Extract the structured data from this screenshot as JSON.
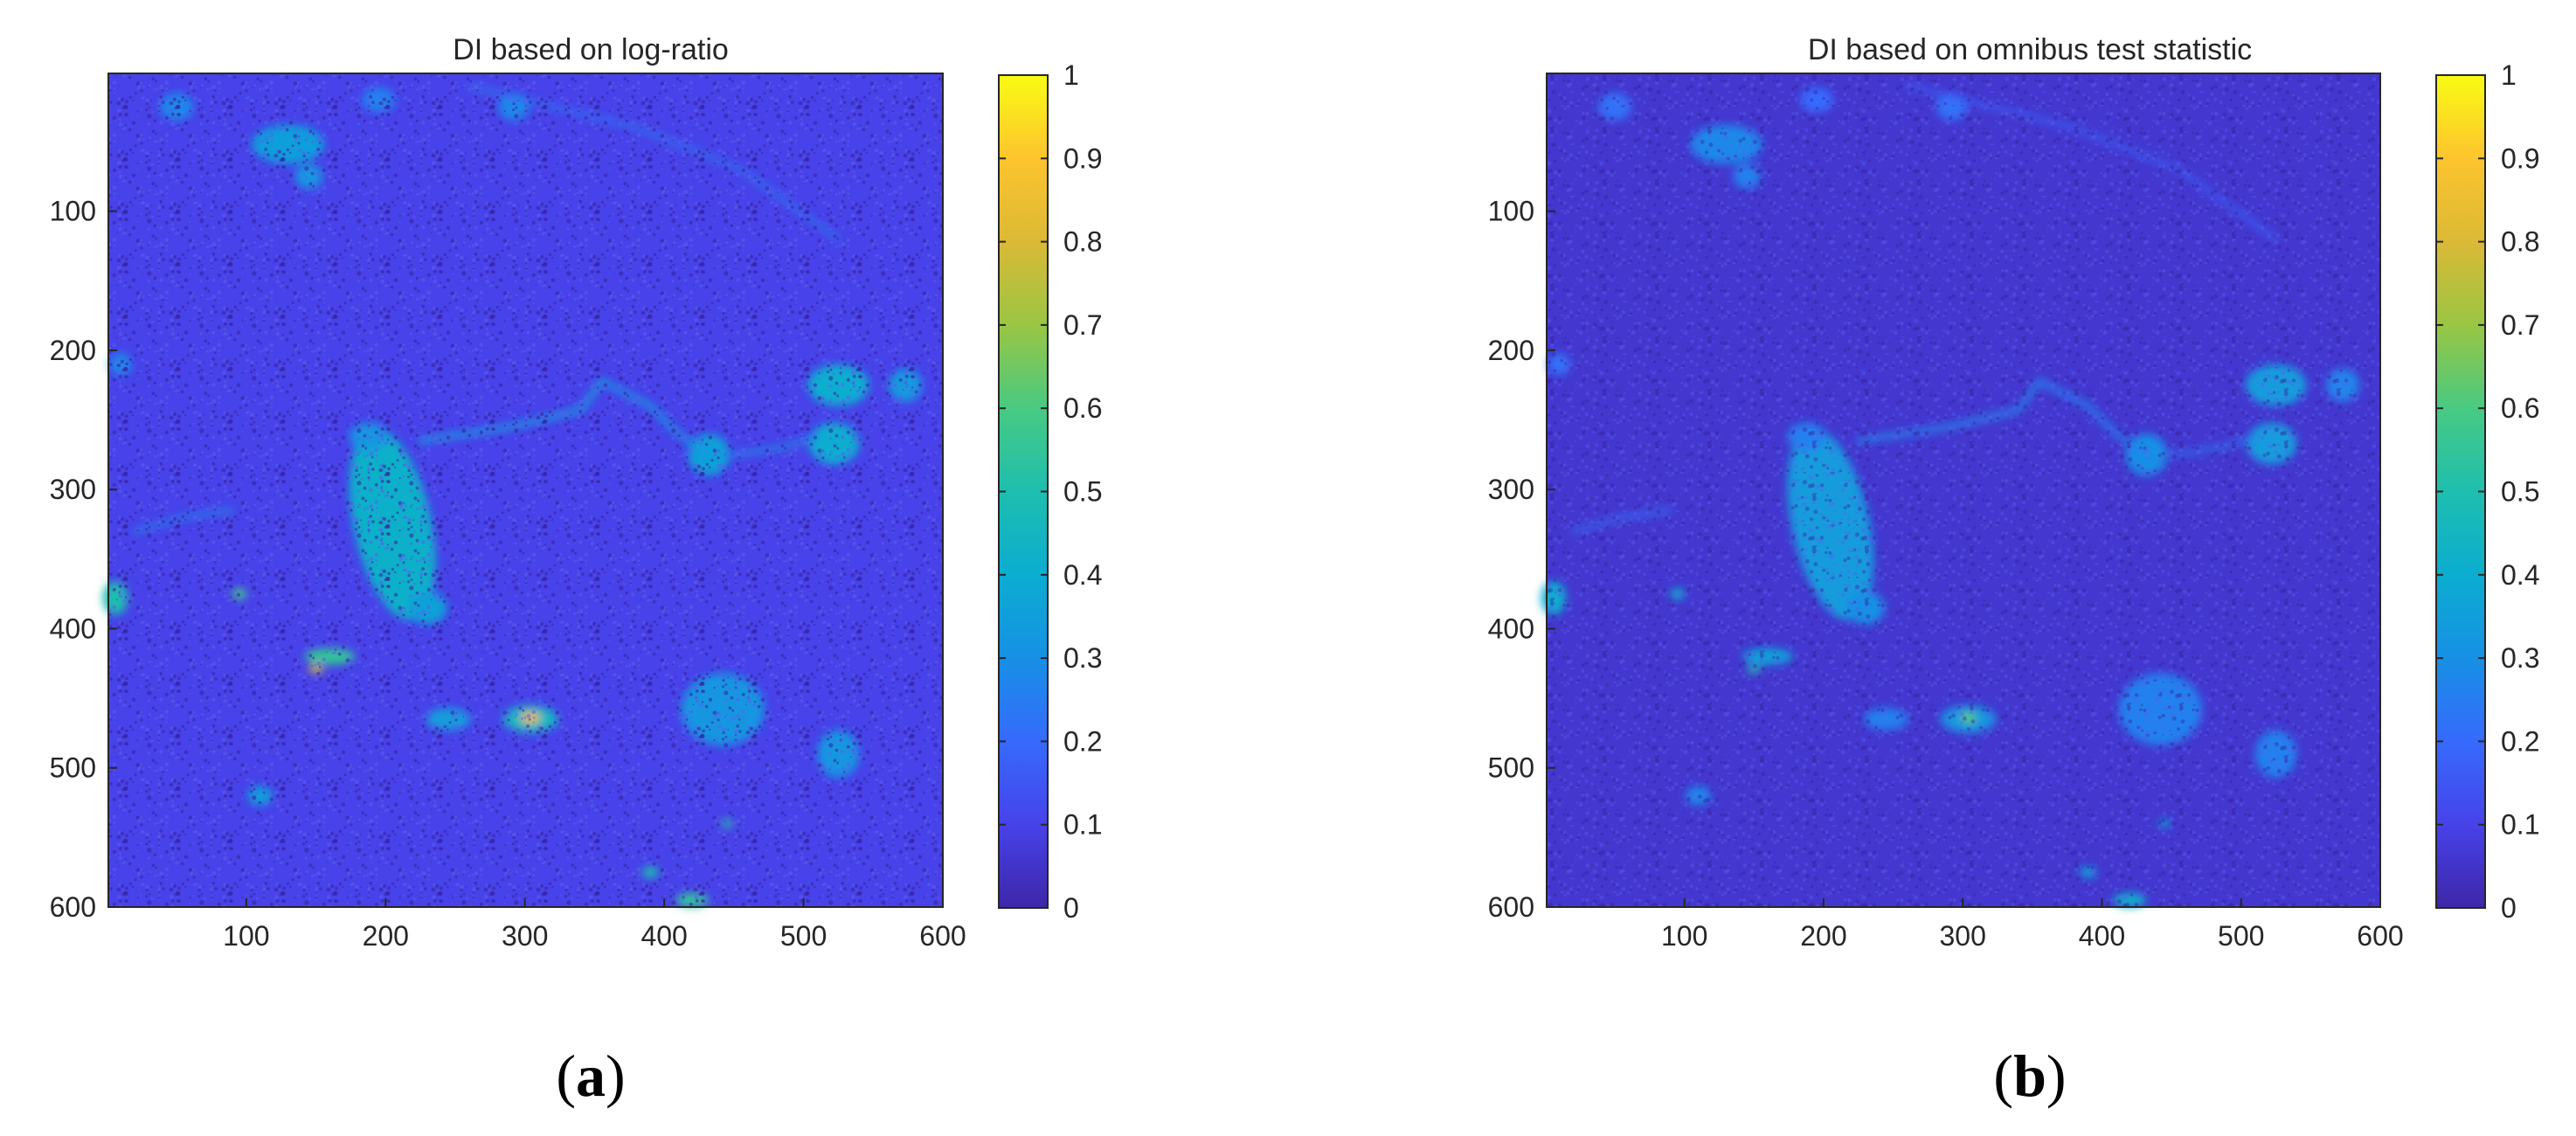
{
  "chart_data": [
    {
      "type": "heatmap",
      "title": "DI based on log-ratio",
      "caption_letter": "a",
      "xlabel": "",
      "ylabel": "",
      "xlim": [
        1,
        600
      ],
      "ylim": [
        600,
        1
      ],
      "x_ticks": [
        100,
        200,
        300,
        400,
        500,
        600
      ],
      "y_ticks": [
        100,
        200,
        300,
        400,
        500,
        600
      ],
      "colorbar_ticks": [
        0,
        0.1,
        0.2,
        0.3,
        0.4,
        0.5,
        0.6,
        0.7,
        0.8,
        0.9,
        1
      ],
      "colorbar_range": [
        0,
        1
      ],
      "colormap": "parula",
      "background_level": 0.1,
      "features": [
        {
          "shape": "ellipse",
          "cx": 205,
          "cy": 325,
          "rx": 28,
          "ry": 70,
          "rot": -12,
          "v": 0.42
        },
        {
          "shape": "ellipse",
          "cx": 188,
          "cy": 262,
          "rx": 14,
          "ry": 10,
          "rot": 0,
          "v": 0.32
        },
        {
          "shape": "ellipse",
          "cx": 230,
          "cy": 385,
          "rx": 14,
          "ry": 12,
          "rot": 0,
          "v": 0.36
        },
        {
          "shape": "ellipse",
          "cx": 130,
          "cy": 52,
          "rx": 26,
          "ry": 14,
          "rot": 0,
          "v": 0.35
        },
        {
          "shape": "ellipse",
          "cx": 145,
          "cy": 75,
          "rx": 10,
          "ry": 9,
          "rot": 0,
          "v": 0.32
        },
        {
          "shape": "ellipse",
          "cx": 50,
          "cy": 25,
          "rx": 12,
          "ry": 10,
          "rot": 0,
          "v": 0.28
        },
        {
          "shape": "ellipse",
          "cx": 195,
          "cy": 20,
          "rx": 12,
          "ry": 9,
          "rot": 0,
          "v": 0.26
        },
        {
          "shape": "ellipse",
          "cx": 292,
          "cy": 25,
          "rx": 11,
          "ry": 10,
          "rot": 0,
          "v": 0.28
        },
        {
          "shape": "ellipse",
          "cx": 525,
          "cy": 225,
          "rx": 22,
          "ry": 15,
          "rot": 0,
          "v": 0.4
        },
        {
          "shape": "ellipse",
          "cx": 573,
          "cy": 225,
          "rx": 12,
          "ry": 12,
          "rot": 0,
          "v": 0.33
        },
        {
          "shape": "ellipse",
          "cx": 522,
          "cy": 267,
          "rx": 18,
          "ry": 15,
          "rot": 0,
          "v": 0.4
        },
        {
          "shape": "ellipse",
          "cx": 432,
          "cy": 275,
          "rx": 15,
          "ry": 15,
          "rot": 0,
          "v": 0.36
        },
        {
          "shape": "ellipse",
          "cx": 525,
          "cy": 490,
          "rx": 15,
          "ry": 17,
          "rot": 0,
          "v": 0.32
        },
        {
          "shape": "ellipse",
          "cx": 442,
          "cy": 458,
          "rx": 30,
          "ry": 26,
          "rot": 0,
          "v": 0.32
        },
        {
          "shape": "ellipse",
          "cx": 304,
          "cy": 465,
          "rx": 20,
          "ry": 10,
          "rot": 0,
          "v": 0.44
        },
        {
          "shape": "ellipse",
          "cx": 304,
          "cy": 464,
          "rx": 7,
          "ry": 4,
          "rot": 0,
          "v": 0.82
        },
        {
          "shape": "ellipse",
          "cx": 160,
          "cy": 420,
          "rx": 18,
          "ry": 6,
          "rot": 0,
          "v": 0.55
        },
        {
          "shape": "ellipse",
          "cx": 150,
          "cy": 429,
          "rx": 5,
          "ry": 3,
          "rot": 0,
          "v": 0.78
        },
        {
          "shape": "ellipse",
          "cx": 95,
          "cy": 375,
          "rx": 5,
          "ry": 4,
          "rot": 0,
          "v": 0.58
        },
        {
          "shape": "ellipse",
          "cx": 110,
          "cy": 520,
          "rx": 9,
          "ry": 7,
          "rot": 0,
          "v": 0.35
        },
        {
          "shape": "ellipse",
          "cx": 245,
          "cy": 465,
          "rx": 16,
          "ry": 8,
          "rot": 0,
          "v": 0.34
        },
        {
          "shape": "ellipse",
          "cx": 6,
          "cy": 378,
          "rx": 9,
          "ry": 12,
          "rot": 0,
          "v": 0.5
        },
        {
          "shape": "ellipse",
          "cx": 420,
          "cy": 595,
          "rx": 12,
          "ry": 5,
          "rot": 0,
          "v": 0.55
        },
        {
          "shape": "ellipse",
          "cx": 390,
          "cy": 575,
          "rx": 6,
          "ry": 4,
          "rot": 0,
          "v": 0.5
        },
        {
          "shape": "ellipse",
          "cx": 445,
          "cy": 540,
          "rx": 4,
          "ry": 3,
          "rot": 0,
          "v": 0.52
        },
        {
          "shape": "ellipse",
          "cx": 10,
          "cy": 210,
          "rx": 8,
          "ry": 8,
          "rot": 0,
          "v": 0.28
        },
        {
          "shape": "line",
          "pts": [
            [
              225,
              265
            ],
            [
              290,
              255
            ],
            [
              340,
              243
            ],
            [
              355,
              222
            ]
          ],
          "w": 4,
          "v": 0.34
        },
        {
          "shape": "line",
          "pts": [
            [
              355,
              222
            ],
            [
              390,
              240
            ],
            [
              410,
              260
            ],
            [
              432,
              275
            ]
          ],
          "w": 4,
          "v": 0.32
        },
        {
          "shape": "line",
          "pts": [
            [
              450,
              275
            ],
            [
              485,
              270
            ],
            [
              510,
              262
            ]
          ],
          "w": 3,
          "v": 0.3
        },
        {
          "shape": "line",
          "pts": [
            [
              260,
              10
            ],
            [
              380,
              40
            ],
            [
              455,
              70
            ],
            [
              525,
              120
            ]
          ],
          "w": 3,
          "v": 0.24
        },
        {
          "shape": "line",
          "pts": [
            [
              20,
              330
            ],
            [
              55,
              320
            ],
            [
              90,
              315
            ]
          ],
          "w": 3,
          "v": 0.28
        }
      ]
    },
    {
      "type": "heatmap",
      "title": "DI based on omnibus test statistic",
      "caption_letter": "b",
      "xlabel": "",
      "ylabel": "",
      "xlim": [
        1,
        600
      ],
      "ylim": [
        600,
        1
      ],
      "x_ticks": [
        100,
        200,
        300,
        400,
        500,
        600
      ],
      "y_ticks": [
        100,
        200,
        300,
        400,
        500,
        600
      ],
      "colorbar_ticks": [
        0,
        0.1,
        0.2,
        0.3,
        0.4,
        0.5,
        0.6,
        0.7,
        0.8,
        0.9,
        1
      ],
      "colorbar_range": [
        0,
        1
      ],
      "colormap": "parula",
      "background_level": 0.06,
      "features": [
        {
          "shape": "ellipse",
          "cx": 205,
          "cy": 325,
          "rx": 28,
          "ry": 70,
          "rot": -12,
          "v": 0.34
        },
        {
          "shape": "ellipse",
          "cx": 188,
          "cy": 262,
          "rx": 14,
          "ry": 10,
          "rot": 0,
          "v": 0.26
        },
        {
          "shape": "ellipse",
          "cx": 230,
          "cy": 385,
          "rx": 14,
          "ry": 12,
          "rot": 0,
          "v": 0.3
        },
        {
          "shape": "ellipse",
          "cx": 130,
          "cy": 52,
          "rx": 26,
          "ry": 14,
          "rot": 0,
          "v": 0.28
        },
        {
          "shape": "ellipse",
          "cx": 145,
          "cy": 75,
          "rx": 10,
          "ry": 9,
          "rot": 0,
          "v": 0.26
        },
        {
          "shape": "ellipse",
          "cx": 50,
          "cy": 25,
          "rx": 12,
          "ry": 10,
          "rot": 0,
          "v": 0.22
        },
        {
          "shape": "ellipse",
          "cx": 195,
          "cy": 20,
          "rx": 12,
          "ry": 9,
          "rot": 0,
          "v": 0.2
        },
        {
          "shape": "ellipse",
          "cx": 292,
          "cy": 25,
          "rx": 11,
          "ry": 10,
          "rot": 0,
          "v": 0.22
        },
        {
          "shape": "ellipse",
          "cx": 525,
          "cy": 225,
          "rx": 22,
          "ry": 15,
          "rot": 0,
          "v": 0.34
        },
        {
          "shape": "ellipse",
          "cx": 573,
          "cy": 225,
          "rx": 12,
          "ry": 12,
          "rot": 0,
          "v": 0.27
        },
        {
          "shape": "ellipse",
          "cx": 522,
          "cy": 267,
          "rx": 18,
          "ry": 15,
          "rot": 0,
          "v": 0.34
        },
        {
          "shape": "ellipse",
          "cx": 432,
          "cy": 275,
          "rx": 15,
          "ry": 15,
          "rot": 0,
          "v": 0.3
        },
        {
          "shape": "ellipse",
          "cx": 525,
          "cy": 490,
          "rx": 15,
          "ry": 17,
          "rot": 0,
          "v": 0.26
        },
        {
          "shape": "ellipse",
          "cx": 442,
          "cy": 458,
          "rx": 30,
          "ry": 26,
          "rot": 0,
          "v": 0.26
        },
        {
          "shape": "ellipse",
          "cx": 304,
          "cy": 465,
          "rx": 20,
          "ry": 10,
          "rot": 0,
          "v": 0.32
        },
        {
          "shape": "ellipse",
          "cx": 304,
          "cy": 464,
          "rx": 6,
          "ry": 4,
          "rot": 0,
          "v": 0.62
        },
        {
          "shape": "ellipse",
          "cx": 160,
          "cy": 420,
          "rx": 18,
          "ry": 6,
          "rot": 0,
          "v": 0.36
        },
        {
          "shape": "ellipse",
          "cx": 150,
          "cy": 429,
          "rx": 5,
          "ry": 3,
          "rot": 0,
          "v": 0.5
        },
        {
          "shape": "ellipse",
          "cx": 95,
          "cy": 375,
          "rx": 5,
          "ry": 4,
          "rot": 0,
          "v": 0.4
        },
        {
          "shape": "ellipse",
          "cx": 110,
          "cy": 520,
          "rx": 9,
          "ry": 7,
          "rot": 0,
          "v": 0.28
        },
        {
          "shape": "ellipse",
          "cx": 245,
          "cy": 465,
          "rx": 16,
          "ry": 8,
          "rot": 0,
          "v": 0.26
        },
        {
          "shape": "ellipse",
          "cx": 6,
          "cy": 378,
          "rx": 9,
          "ry": 12,
          "rot": 0,
          "v": 0.4
        },
        {
          "shape": "ellipse",
          "cx": 420,
          "cy": 595,
          "rx": 12,
          "ry": 5,
          "rot": 0,
          "v": 0.42
        },
        {
          "shape": "ellipse",
          "cx": 390,
          "cy": 575,
          "rx": 6,
          "ry": 4,
          "rot": 0,
          "v": 0.36
        },
        {
          "shape": "ellipse",
          "cx": 445,
          "cy": 540,
          "rx": 4,
          "ry": 3,
          "rot": 0,
          "v": 0.38
        },
        {
          "shape": "ellipse",
          "cx": 10,
          "cy": 210,
          "rx": 8,
          "ry": 8,
          "rot": 0,
          "v": 0.22
        },
        {
          "shape": "line",
          "pts": [
            [
              225,
              265
            ],
            [
              290,
              255
            ],
            [
              340,
              243
            ],
            [
              355,
              222
            ]
          ],
          "w": 4,
          "v": 0.27
        },
        {
          "shape": "line",
          "pts": [
            [
              355,
              222
            ],
            [
              390,
              240
            ],
            [
              410,
              260
            ],
            [
              432,
              275
            ]
          ],
          "w": 4,
          "v": 0.26
        },
        {
          "shape": "line",
          "pts": [
            [
              450,
              275
            ],
            [
              485,
              270
            ],
            [
              510,
              262
            ]
          ],
          "w": 3,
          "v": 0.24
        },
        {
          "shape": "line",
          "pts": [
            [
              260,
              10
            ],
            [
              380,
              40
            ],
            [
              455,
              70
            ],
            [
              525,
              120
            ]
          ],
          "w": 3,
          "v": 0.18
        },
        {
          "shape": "line",
          "pts": [
            [
              20,
              330
            ],
            [
              55,
              320
            ],
            [
              90,
              315
            ]
          ],
          "w": 3,
          "v": 0.22
        }
      ]
    }
  ]
}
